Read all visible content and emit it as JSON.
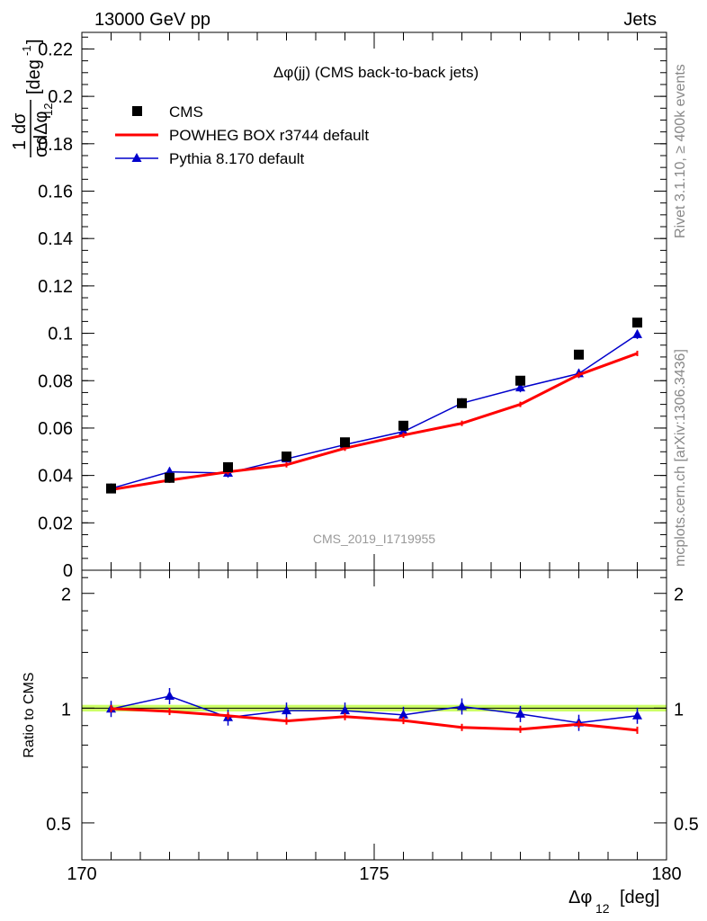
{
  "header": {
    "left": "13000 GeV pp",
    "right": "Jets"
  },
  "side_labels": {
    "rivet": "Rivet 3.1.10, ≥ 400k events",
    "mcplots": "mcplots.cern.ch [arXiv:1306.3436]"
  },
  "chart_data": [
    {
      "type": "line",
      "title": "Δφ(jj) (CMS back-to-back jets)",
      "watermark": "CMS_2019_I1719955",
      "ylabel": "1/σ dσ/dΔφ_12 [deg^-1]",
      "xlim": [
        170,
        180
      ],
      "ylim": [
        0,
        0.227
      ],
      "yticks": [
        0,
        0.02,
        0.04,
        0.06,
        0.08,
        0.1,
        0.12,
        0.14,
        0.16,
        0.18,
        0.2,
        0.22
      ],
      "ytick_labels": [
        "0",
        "0.02",
        "0.04",
        "0.06",
        "0.08",
        "0.1",
        "0.12",
        "0.14",
        "0.16",
        "0.18",
        "0.2",
        "0.22"
      ],
      "x": [
        170.5,
        171.5,
        172.5,
        173.5,
        174.5,
        175.5,
        176.5,
        177.5,
        178.5,
        179.5
      ],
      "legend_position": "top-left",
      "series": [
        {
          "name": "CMS",
          "style": "marker-square",
          "color": "#000000",
          "values": [
            0.0345,
            0.039,
            0.0435,
            0.048,
            0.054,
            0.061,
            0.0705,
            0.08,
            0.091,
            0.1045
          ]
        },
        {
          "name": "POWHEG BOX r3744 default",
          "style": "line",
          "color": "#ff0000",
          "values": [
            0.034,
            0.038,
            0.0415,
            0.0445,
            0.0515,
            0.057,
            0.062,
            0.07,
            0.0825,
            0.0915
          ]
        },
        {
          "name": "Pythia 8.170 default",
          "style": "line-triangle",
          "color": "#0000cc",
          "values": [
            0.0345,
            0.0415,
            0.041,
            0.047,
            0.053,
            0.0585,
            0.0705,
            0.077,
            0.083,
            0.0995
          ]
        }
      ]
    },
    {
      "type": "line",
      "ylabel": "Ratio to CMS",
      "xlabel": "Δφ_12 [deg]",
      "xlim": [
        170,
        180
      ],
      "ylim": [
        0.4,
        2.3
      ],
      "yscale": "log",
      "yticks": [
        0.5,
        1,
        2
      ],
      "ytick_labels": [
        "0.5",
        "1",
        "2"
      ],
      "xticks": [
        170,
        175,
        180
      ],
      "xtick_labels": [
        "170",
        "175",
        "180"
      ],
      "band": {
        "center": 1.0,
        "halfwidth": 0.02,
        "color": "#ccff66"
      },
      "x": [
        170.5,
        171.5,
        172.5,
        173.5,
        174.5,
        175.5,
        176.5,
        177.5,
        178.5,
        179.5
      ],
      "series": [
        {
          "name": "POWHEG BOX r3744 default",
          "color": "#ff0000",
          "values": [
            0.997,
            0.98,
            0.955,
            0.925,
            0.95,
            0.928,
            0.89,
            0.88,
            0.907,
            0.875
          ]
        },
        {
          "name": "Pythia 8.170 default",
          "color": "#0000cc",
          "values": [
            0.995,
            1.075,
            0.945,
            0.985,
            0.985,
            0.96,
            1.01,
            0.965,
            0.915,
            0.955
          ]
        }
      ]
    }
  ]
}
